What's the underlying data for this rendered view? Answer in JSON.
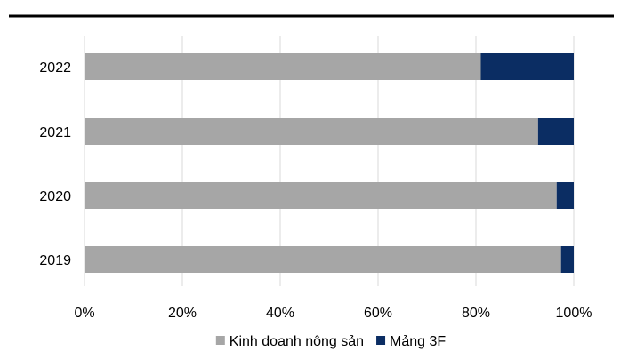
{
  "chart_data": {
    "type": "bar",
    "orientation": "horizontal",
    "stacked": "percent",
    "categories": [
      "2022",
      "2021",
      "2020",
      "2019"
    ],
    "series": [
      {
        "name": "Kinh doanh nông sản",
        "color": "#a6a6a6",
        "values": [
          81,
          92.7,
          96.5,
          97.4
        ]
      },
      {
        "name": "Mảng 3F",
        "color": "#0b2d63",
        "values": [
          19,
          7.3,
          3.5,
          2.6
        ]
      }
    ],
    "xticks": [
      "0%",
      "20%",
      "40%",
      "60%",
      "80%",
      "100%"
    ],
    "xlim": [
      0,
      100
    ],
    "grid": "vertical",
    "legend_position": "bottom",
    "top_rule_color": "#000000",
    "grid_color": "#d9d9d9"
  }
}
